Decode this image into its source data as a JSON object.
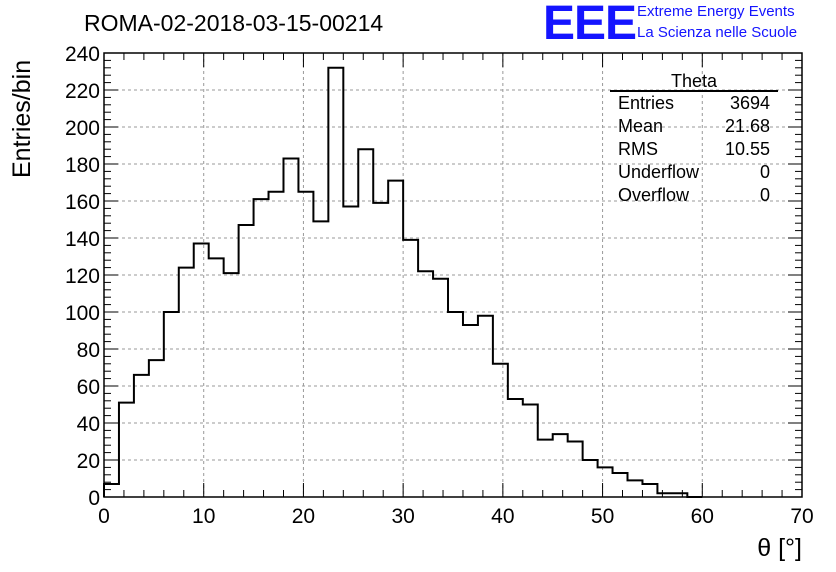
{
  "title": "ROMA-02-2018-03-15-00214",
  "logo": {
    "mark": "EEE",
    "line1": "Extreme Energy Events",
    "line2": "La Scienza nelle Scuole"
  },
  "stats_box": {
    "title": "Theta",
    "rows": [
      {
        "label": "Entries",
        "value": "3694"
      },
      {
        "label": "Mean",
        "value": "21.68"
      },
      {
        "label": "RMS",
        "value": "10.55"
      },
      {
        "label": "Underflow",
        "value": "0"
      },
      {
        "label": "Overflow",
        "value": "0"
      }
    ]
  },
  "chart_data": {
    "type": "bar",
    "style": "step-histogram",
    "title": "ROMA-02-2018-03-15-00214",
    "xlabel": "θ [°]",
    "ylabel": "Entries/bin",
    "xlim": [
      0,
      70
    ],
    "ylim": [
      0,
      240
    ],
    "xticks": [
      0,
      10,
      20,
      30,
      40,
      50,
      60,
      70
    ],
    "yticks": [
      0,
      20,
      40,
      60,
      80,
      100,
      120,
      140,
      160,
      180,
      200,
      220,
      240
    ],
    "grid": true,
    "bin_width": 1.5,
    "x_start": 0,
    "values": [
      7,
      51,
      66,
      74,
      100,
      124,
      137,
      129,
      121,
      147,
      161,
      165,
      183,
      165,
      149,
      232,
      157,
      188,
      159,
      171,
      139,
      122,
      118,
      100,
      93,
      98,
      72,
      53,
      50,
      31,
      34,
      30,
      20,
      16,
      13,
      9,
      7,
      2,
      2,
      0
    ]
  }
}
